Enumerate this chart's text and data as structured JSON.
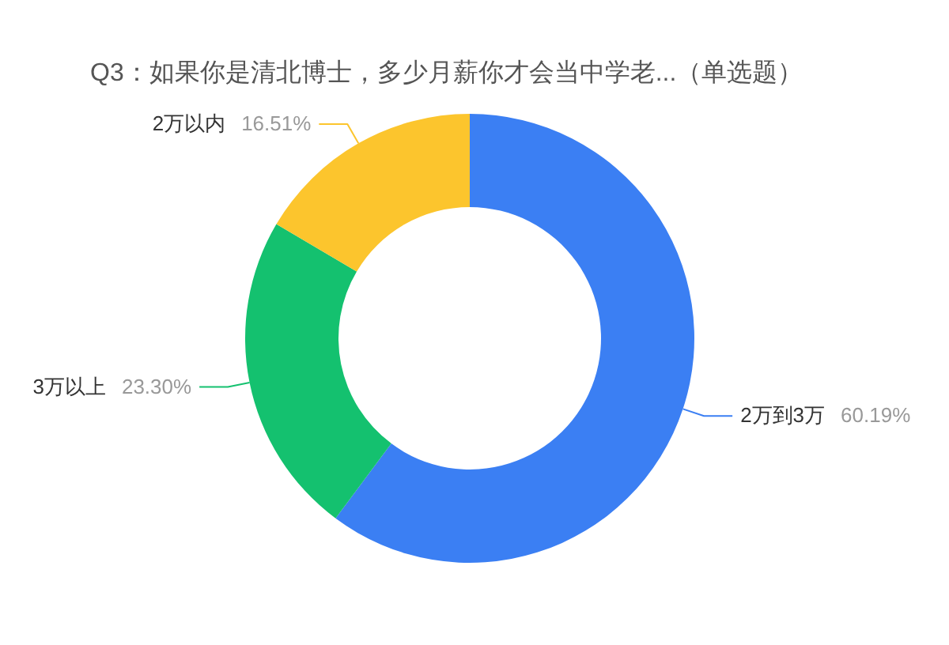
{
  "chart_data": {
    "type": "donut",
    "title": "Q3：如果你是清北博士，多少月薪你才会当中学老...（单选题）",
    "categories": [
      "2万到3万",
      "3万以上",
      "2万以内"
    ],
    "values": [
      60.19,
      23.3,
      16.51
    ],
    "colors": [
      "#3b7ff3",
      "#14c16f",
      "#fcc52d"
    ],
    "value_labels": [
      "60.19%",
      "23.30%",
      "16.51%"
    ]
  }
}
